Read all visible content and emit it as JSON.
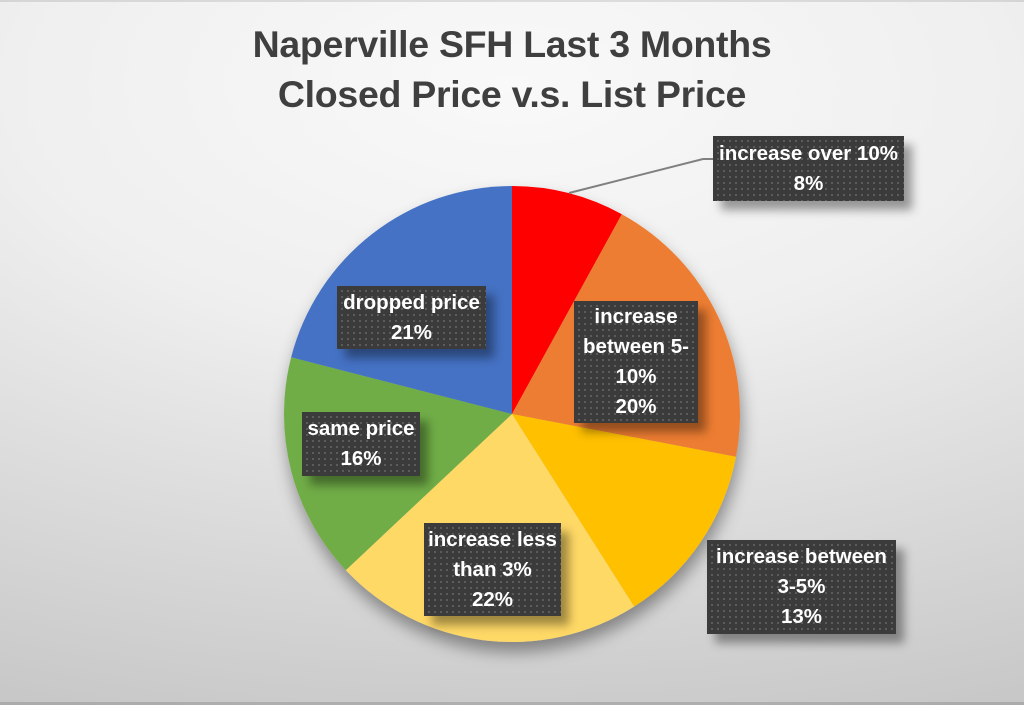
{
  "title": {
    "line1": "Naperville SFH Last 3 Months",
    "line2": "Closed Price v.s. List Price"
  },
  "chart_data": {
    "type": "pie",
    "title": "Naperville SFH Last 3 Months Closed Price v.s. List Price",
    "start_angle_deg": 0,
    "direction": "clockwise",
    "legend_position": "none",
    "background": "gray gradient",
    "categories": [
      "increase over 10%",
      "increase between 5-10%",
      "increase between 3-5%",
      "increase less than 3%",
      "same price",
      "dropped price"
    ],
    "values": [
      8,
      20,
      13,
      22,
      16,
      21
    ],
    "slices": [
      {
        "label": "increase over 10%",
        "value_pct": 8,
        "color": "#fe0000"
      },
      {
        "label": "increase between 5-10%",
        "value_pct": 20,
        "color": "#ed7d31"
      },
      {
        "label": "increase between 3-5%",
        "value_pct": 13,
        "color": "#ffc000"
      },
      {
        "label": "increase less than 3%",
        "value_pct": 22,
        "color": "#ffd966"
      },
      {
        "label": "same price",
        "value_pct": 16,
        "color": "#70ad47"
      },
      {
        "label": "dropped price",
        "value_pct": 21,
        "color": "#4472c4"
      }
    ],
    "callouts": [
      {
        "id": "increase-over-10",
        "lines": [
          "increase over 10%",
          "8%"
        ]
      },
      {
        "id": "increase-5-10",
        "lines": [
          "increase",
          "between 5-",
          "10%",
          "20%"
        ]
      },
      {
        "id": "increase-3-5",
        "lines": [
          "increase between",
          "3-5%",
          "13%"
        ]
      },
      {
        "id": "increase-less-3",
        "lines": [
          "increase less",
          "than 3%",
          "22%"
        ]
      },
      {
        "id": "same-price",
        "lines": [
          "same price",
          "16%"
        ]
      },
      {
        "id": "dropped-price",
        "lines": [
          "dropped price",
          "21%"
        ]
      }
    ],
    "callout_style": {
      "fill": "#3b3b3b",
      "dot_pattern": true,
      "text_color": "#ffffff"
    },
    "leader_line_color": "#808080"
  }
}
